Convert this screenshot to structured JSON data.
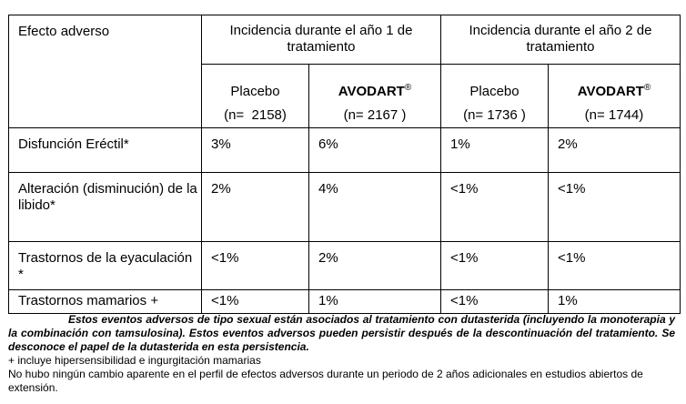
{
  "table": {
    "header_effect": "Efecto adverso",
    "year1_header": "Incidencia durante el año 1 de tratamiento",
    "year2_header": "Incidencia durante el año 2 de tratamiento",
    "placebo_label": "Placebo",
    "drug_label": "AVODART",
    "reg_mark": "®",
    "y1_placebo_n": "(n=  2158)",
    "y1_drug_n": "(n= 2167 )",
    "y2_placebo_n": "(n= 1736 )",
    "y2_drug_n": "(n= 1744)",
    "rows": [
      {
        "label": "Disfunción Eréctil*",
        "values": [
          "3%",
          "6%",
          "1%",
          "2%"
        ]
      },
      {
        "label": "Alteración (disminución) de la libido*",
        "values": [
          "2%",
          "4%",
          "<1%",
          "<1%"
        ]
      },
      {
        "label": "Trastornos de la eyaculación *",
        "values": [
          "<1%",
          "2%",
          "<1%",
          "<1%"
        ]
      },
      {
        "label": "Trastornos mamarios +",
        "values": [
          "<1%",
          "1%",
          "<1%",
          "1%"
        ]
      }
    ]
  },
  "notes": {
    "bold_note": "Estos eventos adversos de tipo sexual están asociados al tratamiento con dutasterida (incluyendo la monoterapia y la combinación con tamsulosina). Estos eventos adversos pueden persistir después de la descontinuación del tratamiento. Se desconoce el papel de la dutasterida en esta persistencia.",
    "plus_note": "+ incluye hipersensibilidad e ingurgitación mamarias",
    "extension_note": "No hubo ningún cambio aparente en el perfil de efectos adversos durante un periodo de 2 años adicionales en estudios abiertos de extensión."
  }
}
